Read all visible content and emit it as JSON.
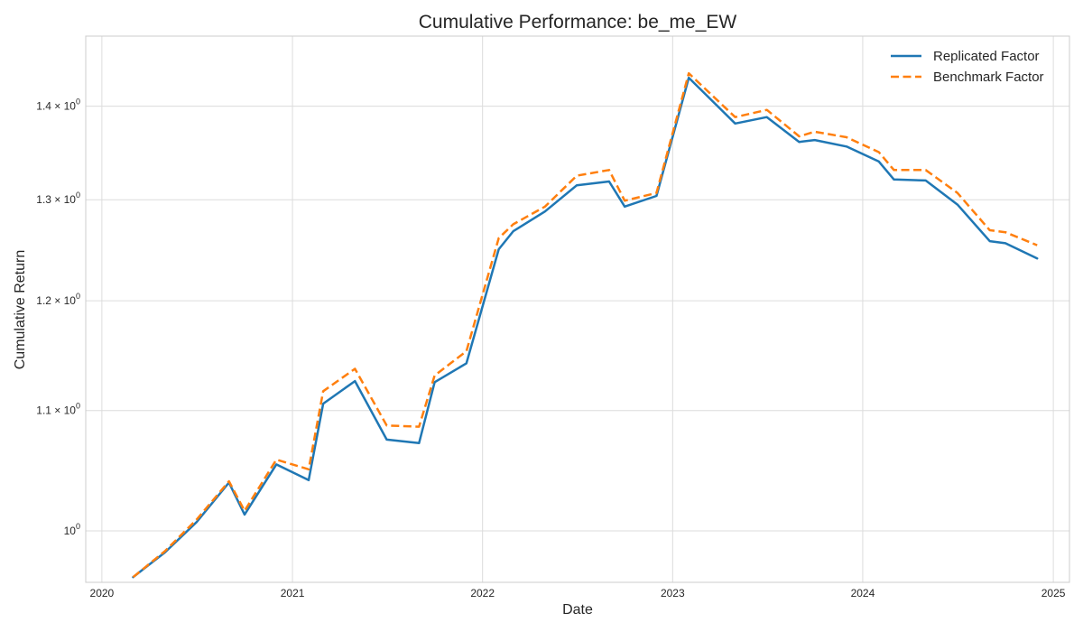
{
  "chart_data": {
    "type": "line",
    "title": "Cumulative Performance: be_me_EW",
    "xlabel": "Date",
    "ylabel": "Cumulative Return",
    "yscale": "log",
    "xlim": [
      "2019-12-01",
      "2025-02-01"
    ],
    "ylim": [
      0.96,
      1.48
    ],
    "grid": true,
    "legend_position": "top-right",
    "x_ticks": [
      "2020",
      "2021",
      "2022",
      "2023",
      "2024",
      "2025"
    ],
    "y_ticks": [
      {
        "value": 1.0,
        "base": "10",
        "exp": "0"
      },
      {
        "value": 1.1,
        "base": "1.1 × 10",
        "exp": "0"
      },
      {
        "value": 1.2,
        "base": "1.2 × 10",
        "exp": "0"
      },
      {
        "value": 1.3,
        "base": "1.3 × 10",
        "exp": "0"
      },
      {
        "value": 1.4,
        "base": "1.4 × 10",
        "exp": "0"
      }
    ],
    "x": [
      "2020-03-01",
      "2020-05-01",
      "2020-07-01",
      "2020-09-01",
      "2020-10-01",
      "2020-12-01",
      "2021-02-01",
      "2021-03-01",
      "2021-05-01",
      "2021-07-01",
      "2021-09-01",
      "2021-10-01",
      "2021-12-01",
      "2022-02-01",
      "2022-03-01",
      "2022-05-01",
      "2022-07-01",
      "2022-09-01",
      "2022-10-01",
      "2022-12-01",
      "2023-02-01",
      "2023-05-01",
      "2023-07-01",
      "2023-09-01",
      "2023-10-01",
      "2023-12-01",
      "2024-02-01",
      "2024-03-01",
      "2024-05-01",
      "2024-07-01",
      "2024-09-01",
      "2024-10-01",
      "2024-12-01"
    ],
    "series": [
      {
        "name": "Replicated Factor",
        "color": "#1f77b4",
        "style": "solid",
        "values": [
          0.964,
          0.983,
          1.007,
          1.039,
          1.013,
          1.054,
          1.041,
          1.106,
          1.126,
          1.075,
          1.072,
          1.125,
          1.142,
          1.25,
          1.268,
          1.288,
          1.315,
          1.319,
          1.293,
          1.304,
          1.432,
          1.381,
          1.388,
          1.361,
          1.363,
          1.356,
          1.34,
          1.321,
          1.32,
          1.295,
          1.258,
          1.256,
          1.241
        ]
      },
      {
        "name": "Benchmark Factor",
        "color": "#ff7f0e",
        "style": "dashed",
        "values": [
          0.964,
          0.984,
          1.009,
          1.04,
          1.016,
          1.058,
          1.05,
          1.117,
          1.137,
          1.087,
          1.086,
          1.131,
          1.153,
          1.261,
          1.275,
          1.293,
          1.325,
          1.331,
          1.299,
          1.307,
          1.437,
          1.388,
          1.396,
          1.367,
          1.372,
          1.366,
          1.35,
          1.331,
          1.331,
          1.307,
          1.269,
          1.267,
          1.254
        ]
      }
    ]
  }
}
